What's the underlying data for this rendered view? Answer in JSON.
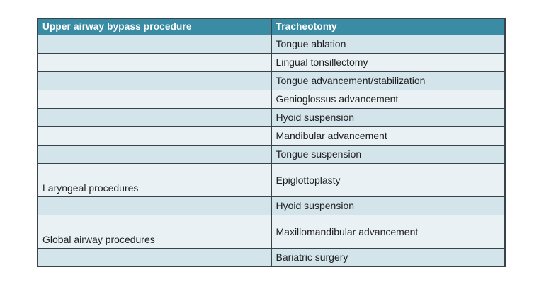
{
  "table": {
    "header": {
      "col1": "Upper airway bypass procedure",
      "col2": "Tracheotomy"
    },
    "rows": [
      {
        "category": "",
        "procedure": "Tongue ablation",
        "tall": false
      },
      {
        "category": "",
        "procedure": "Lingual tonsillectomy",
        "tall": false
      },
      {
        "category": "",
        "procedure": "Tongue advancement/stabilization",
        "tall": false
      },
      {
        "category": "",
        "procedure": "Genioglossus advancement",
        "tall": false
      },
      {
        "category": "",
        "procedure": "Hyoid suspension",
        "tall": false
      },
      {
        "category": "",
        "procedure": "Mandibular advancement",
        "tall": false
      },
      {
        "category": "",
        "procedure": "Tongue suspension",
        "tall": false
      },
      {
        "category": "Laryngeal procedures",
        "procedure": "Epiglottoplasty",
        "tall": true
      },
      {
        "category": "",
        "procedure": "Hyoid suspension",
        "tall": false
      },
      {
        "category": "Global airway procedures",
        "procedure": "Maxillomandibular advancement",
        "tall": true
      },
      {
        "category": "",
        "procedure": "Bariatric surgery",
        "tall": false
      }
    ],
    "colors": {
      "header_bg": "#3A8CA4",
      "row_odd_bg": "#D3E4EB",
      "row_even_bg": "#E9F1F5",
      "border": "#3A4448",
      "header_text": "#FFFFFF",
      "body_text": "#1F1F1F",
      "page_bg": "#FFFFFF"
    }
  }
}
